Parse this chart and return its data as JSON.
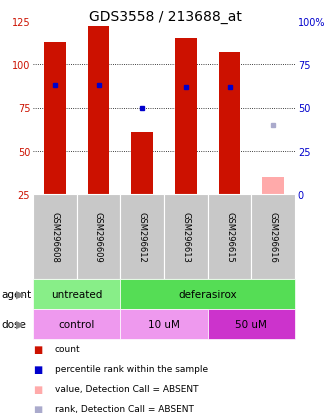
{
  "title": "GDS3558 / 213688_at",
  "samples": [
    "GSM296608",
    "GSM296609",
    "GSM296612",
    "GSM296613",
    "GSM296615",
    "GSM296616"
  ],
  "count_values": [
    113,
    122,
    61,
    115,
    107,
    35
  ],
  "rank_values": [
    63,
    63,
    50,
    62,
    62,
    40
  ],
  "absent": [
    false,
    false,
    false,
    false,
    false,
    true
  ],
  "ylim_left": [
    25,
    125
  ],
  "ylim_right": [
    0,
    100
  ],
  "yticks_left": [
    25,
    50,
    75,
    100,
    125
  ],
  "yticks_right": [
    0,
    25,
    50,
    75,
    100
  ],
  "ytick_labels_right": [
    "0",
    "25",
    "50",
    "75",
    "100%"
  ],
  "bar_color_present": "#cc1100",
  "bar_color_absent": "#ffaaaa",
  "rank_color_present": "#0000cc",
  "rank_color_absent": "#aaaacc",
  "agent_data": [
    {
      "label": "untreated",
      "start": 0,
      "end": 2,
      "color": "#88ee88"
    },
    {
      "label": "deferasirox",
      "start": 2,
      "end": 6,
      "color": "#55dd55"
    }
  ],
  "dose_data": [
    {
      "label": "control",
      "start": 0,
      "end": 2,
      "color": "#ee99ee"
    },
    {
      "label": "10 uM",
      "start": 2,
      "end": 4,
      "color": "#ee99ee"
    },
    {
      "label": "50 uM",
      "start": 4,
      "end": 6,
      "color": "#cc33cc"
    }
  ],
  "sample_bg_color": "#c8c8c8",
  "legend_items": [
    {
      "label": "count",
      "color": "#cc1100"
    },
    {
      "label": "percentile rank within the sample",
      "color": "#0000cc"
    },
    {
      "label": "value, Detection Call = ABSENT",
      "color": "#ffaaaa"
    },
    {
      "label": "rank, Detection Call = ABSENT",
      "color": "#aaaacc"
    }
  ],
  "left_axis_color": "#cc1100",
  "right_axis_color": "#0000cc",
  "title_fontsize": 10,
  "tick_fontsize": 7,
  "bar_width": 0.5,
  "grid_yticks": [
    50,
    75,
    100
  ]
}
